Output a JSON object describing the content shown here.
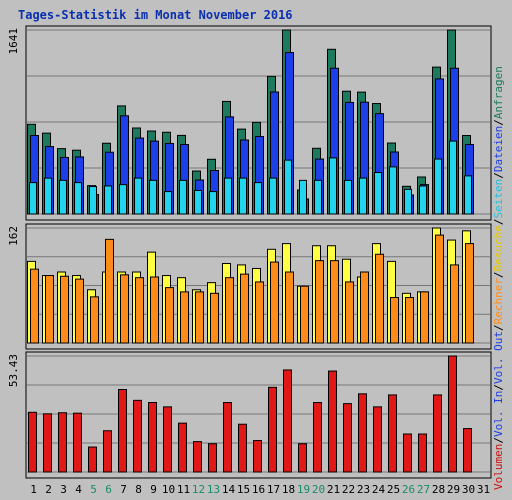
{
  "chart_data": {
    "type": "bar",
    "title": "Tages-Statistik im Monat November 2016",
    "categories": [
      "1",
      "2",
      "3",
      "4",
      "5",
      "6",
      "7",
      "8",
      "9",
      "10",
      "11",
      "12",
      "13",
      "14",
      "15",
      "16",
      "17",
      "18",
      "19",
      "20",
      "21",
      "22",
      "23",
      "24",
      "25",
      "26",
      "27",
      "28",
      "29",
      "30",
      "31"
    ],
    "weekend_days": [
      "5",
      "6",
      "12",
      "13",
      "19",
      "20",
      "26",
      "27"
    ],
    "panels": [
      {
        "name": "top",
        "ymax_label": "1641",
        "ymax": 1641,
        "series": [
          {
            "name": "Anfragen",
            "color": "#1d7a5f",
            "values": [
              800,
              721,
              583,
              569,
              253,
              631,
              964,
              767,
              740,
              729,
              701,
              383,
              488,
              1004,
              757,
              817,
              1227,
              1641,
              214,
              586,
              1469,
              1095,
              1087,
              985,
              633,
              247,
              330,
              1310,
              1641,
              700,
              0
            ]
          },
          {
            "name": "Dateien",
            "color": "#1c3fe8",
            "values": [
              700,
              601,
              504,
              509,
              174,
              551,
              876,
              677,
              650,
              629,
              620,
              303,
              388,
              866,
              660,
              691,
              1088,
              1440,
              134,
              490,
              1300,
              995,
              997,
              895,
              553,
              170,
              262,
              1205,
              1300,
              620,
              0
            ]
          },
          {
            "name": "Seiten",
            "color": "#22d4ee",
            "values": [
              280,
              320,
              300,
              280,
              245,
              250,
              262,
              320,
              300,
              200,
              300,
              210,
              200,
              320,
              320,
              280,
              320,
              480,
              300,
              300,
              500,
              300,
              320,
              370,
              420,
              220,
              250,
              490,
              650,
              340,
              0
            ]
          }
        ]
      },
      {
        "name": "middle",
        "ymax_label": "162",
        "ymax": 162,
        "series": [
          {
            "name": "Besuche",
            "color": "#ffff44",
            "values": [
              115,
              95,
              100,
              95,
              75,
              100,
              100,
              100,
              128,
              95,
              92,
              75,
              85,
              112,
              110,
              105,
              132,
              140,
              80,
              137,
              137,
              118,
              93,
              140,
              115,
              70,
              72,
              162,
              145,
              158,
              0
            ]
          },
          {
            "name": "Rechner",
            "color": "#ff8c1a",
            "values": [
              104,
              95,
              94,
              90,
              65,
              146,
              96,
              92,
              93,
              78,
              72,
              72,
              70,
              92,
              97,
              86,
              114,
              100,
              80,
              116,
              116,
              86,
              100,
              125,
              64,
              64,
              72,
              152,
              110,
              140,
              0
            ]
          }
        ]
      },
      {
        "name": "bottom",
        "ymax_label": "53.43",
        "ymax": 53.43,
        "series": [
          {
            "name": "Volumen",
            "color": "#e01818",
            "values": [
              27.5,
              26.8,
              27.3,
              27.1,
              11.5,
              19.0,
              38.0,
              33.0,
              32.0,
              30.0,
              22.5,
              14.0,
              13.0,
              32.0,
              22.0,
              14.5,
              39.0,
              47.0,
              13.0,
              32.0,
              46.5,
              31.5,
              36.0,
              30.0,
              35.5,
              17.5,
              17.5,
              35.5,
              53.43,
              20.0,
              0
            ]
          }
        ]
      }
    ],
    "legend_right": [
      {
        "label": "Volumen",
        "color": "#d01010"
      },
      {
        "label": "/",
        "color": "#000000"
      },
      {
        "label": "Vol. In",
        "color": "#1c3fe8"
      },
      {
        "label": "/",
        "color": "#000000"
      },
      {
        "label": "Vol. Out",
        "color": "#1c3fe8"
      },
      {
        "label": "/",
        "color": "#000000"
      },
      {
        "label": "Rechner",
        "color": "#ff8c1a"
      },
      {
        "label": "/",
        "color": "#000000"
      },
      {
        "label": "Besuche",
        "color": "#e6c800"
      },
      {
        "label": "/",
        "color": "#000000"
      },
      {
        "label": "Seiten",
        "color": "#22c0dd"
      },
      {
        "label": "/",
        "color": "#000000"
      },
      {
        "label": "Dateien",
        "color": "#1c3fe8"
      },
      {
        "label": "/",
        "color": "#000000"
      },
      {
        "label": "Anfragen",
        "color": "#1d7a5f"
      }
    ]
  }
}
